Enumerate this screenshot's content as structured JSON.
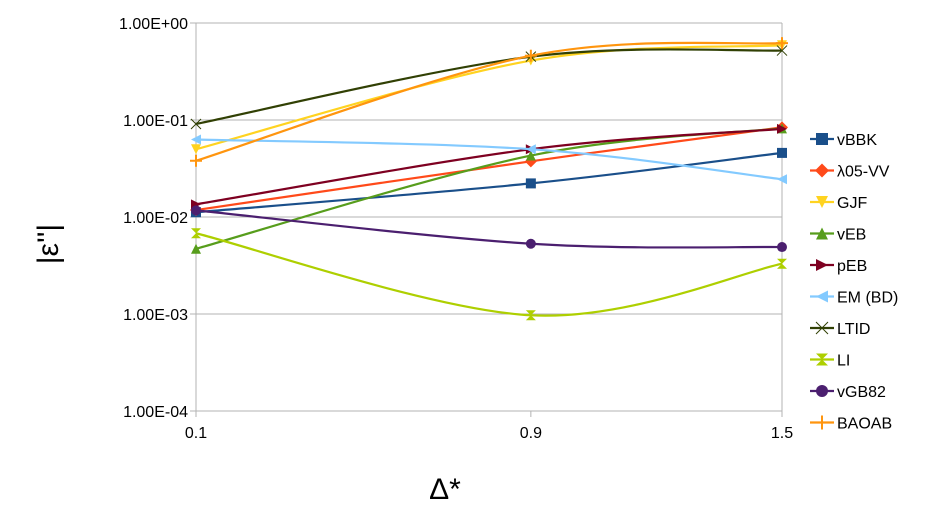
{
  "chart_data": {
    "type": "line",
    "title": "",
    "xlabel": "Δ*",
    "ylabel": "|ε''|",
    "x": [
      0.1,
      0.9,
      1.5
    ],
    "x_tick_labels": [
      "0.1",
      "0.9",
      "1.5"
    ],
    "y_scale": "log",
    "ylim": [
      0.0001,
      1
    ],
    "y_tick_values": [
      0.0001,
      0.001,
      0.01,
      0.1,
      1
    ],
    "y_tick_labels": [
      "1.00E-04",
      "1.00E-03",
      "1.00E-02",
      "1.00E-01",
      "1.00E+00"
    ],
    "grid": true,
    "legend_position": "right",
    "series": [
      {
        "name": "vBBK",
        "color": "#1a4f8a",
        "marker": "square",
        "values": [
          0.0112,
          0.0222,
          0.0458
        ]
      },
      {
        "name": "λ05-VV",
        "color": "#ff4a1a",
        "marker": "diamond",
        "values": [
          0.0118,
          0.0375,
          0.084
        ]
      },
      {
        "name": "GJF",
        "color": "#ffd320",
        "marker": "triangle-down",
        "values": [
          0.05,
          0.41,
          0.59
        ]
      },
      {
        "name": "vEB",
        "color": "#579d1c",
        "marker": "triangle-up",
        "values": [
          0.0047,
          0.043,
          0.082
        ]
      },
      {
        "name": "pEB",
        "color": "#7e0021",
        "marker": "triangle-right",
        "values": [
          0.0135,
          0.05,
          0.081
        ]
      },
      {
        "name": "EM (BD)",
        "color": "#83caff",
        "marker": "triangle-left",
        "values": [
          0.063,
          0.05,
          0.0245
        ]
      },
      {
        "name": "LTID",
        "color": "#314004",
        "marker": "bowtie",
        "values": [
          0.091,
          0.45,
          0.52
        ]
      },
      {
        "name": "LI",
        "color": "#aecf00",
        "marker": "hourglass",
        "values": [
          0.0068,
          0.00097,
          0.0033
        ]
      },
      {
        "name": "vGB82",
        "color": "#4b1f6f",
        "marker": "circle",
        "values": [
          0.0117,
          0.0053,
          0.0049
        ]
      },
      {
        "name": "BAOAB",
        "color": "#ff950e",
        "marker": "plus",
        "values": [
          0.038,
          0.46,
          0.62
        ]
      }
    ]
  }
}
